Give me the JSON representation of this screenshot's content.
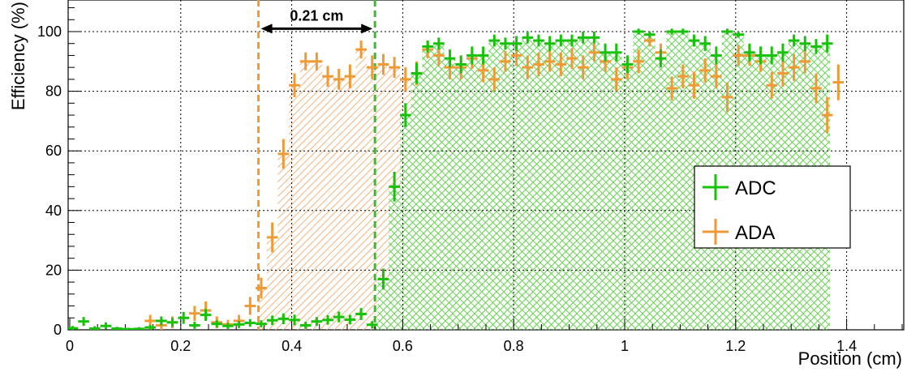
{
  "chart_data": {
    "type": "scatter",
    "xlabel": "Position (cm)",
    "ylabel": "Efficiency (%)",
    "xlim": [
      0,
      1.5
    ],
    "ylim": [
      0,
      110
    ],
    "x_ticks": [
      "0",
      "0.2",
      "0.4",
      "0.6",
      "0.8",
      "1",
      "1.2",
      "1.4"
    ],
    "x_tick_values": [
      0,
      0.2,
      0.4,
      0.6,
      0.8,
      1.0,
      1.2,
      1.4
    ],
    "y_ticks": [
      "0",
      "20",
      "40",
      "60",
      "80",
      "100"
    ],
    "y_tick_values": [
      0,
      20,
      40,
      60,
      80,
      100
    ],
    "grid": true,
    "legend_position": "right",
    "annotation": {
      "text": "0.21 cm",
      "x_start": 0.34,
      "x_end": 0.55,
      "y": 101
    },
    "threshold_lines": [
      {
        "series": "ADA",
        "x": 0.34,
        "color": "#f39a2f"
      },
      {
        "series": "ADC",
        "x": 0.55,
        "color": "#34c02a"
      }
    ],
    "bin_half_width": 0.01,
    "series": [
      {
        "name": "ADC",
        "color": "#17c30a",
        "hatch_color": "#6ad45a",
        "hatch_range": [
          0.55,
          1.37
        ],
        "points": [
          [
            0.005,
            0.5,
            0.8
          ],
          [
            0.025,
            2.8,
            1.5
          ],
          [
            0.045,
            0.4,
            0.8
          ],
          [
            0.065,
            1.3,
            1.2
          ],
          [
            0.085,
            0.4,
            0.6
          ],
          [
            0.105,
            0.2,
            0.5
          ],
          [
            0.125,
            0.3,
            0.6
          ],
          [
            0.145,
            0.8,
            0.8
          ],
          [
            0.165,
            3,
            1.5
          ],
          [
            0.185,
            2.5,
            1.5
          ],
          [
            0.205,
            4,
            2
          ],
          [
            0.225,
            1.5,
            1.2
          ],
          [
            0.245,
            5,
            2
          ],
          [
            0.265,
            2,
            1.2
          ],
          [
            0.285,
            1.3,
            1
          ],
          [
            0.305,
            1.8,
            1.2
          ],
          [
            0.325,
            2.3,
            1.3
          ],
          [
            0.345,
            2,
            1.2
          ],
          [
            0.365,
            3.2,
            1.6
          ],
          [
            0.385,
            3.7,
            1.8
          ],
          [
            0.405,
            3.3,
            1.8
          ],
          [
            0.425,
            1.5,
            1.2
          ],
          [
            0.445,
            2.8,
            1.5
          ],
          [
            0.465,
            3.3,
            1.6
          ],
          [
            0.485,
            4.3,
            1.8
          ],
          [
            0.505,
            3.4,
            1.6
          ],
          [
            0.525,
            5.3,
            2
          ],
          [
            0.545,
            1.7,
            1.2
          ],
          [
            0.565,
            17,
            3.5
          ],
          [
            0.585,
            48,
            5
          ],
          [
            0.605,
            72,
            4
          ],
          [
            0.625,
            86,
            3.5
          ],
          [
            0.645,
            95,
            2
          ],
          [
            0.665,
            96,
            2
          ],
          [
            0.685,
            91,
            3
          ],
          [
            0.705,
            89,
            3
          ],
          [
            0.725,
            92,
            3
          ],
          [
            0.745,
            92,
            3
          ],
          [
            0.765,
            97,
            2
          ],
          [
            0.785,
            96,
            2
          ],
          [
            0.805,
            96,
            2.5
          ],
          [
            0.825,
            98,
            2
          ],
          [
            0.845,
            97,
            2
          ],
          [
            0.865,
            96,
            2.5
          ],
          [
            0.885,
            97,
            2
          ],
          [
            0.905,
            97,
            2
          ],
          [
            0.925,
            98,
            2
          ],
          [
            0.945,
            98,
            2
          ],
          [
            0.965,
            93,
            3
          ],
          [
            0.985,
            93,
            3
          ],
          [
            1.005,
            89,
            3
          ],
          [
            1.025,
            100,
            1
          ],
          [
            1.045,
            99,
            1
          ],
          [
            1.065,
            91,
            3
          ],
          [
            1.085,
            100,
            1
          ],
          [
            1.105,
            100,
            1
          ],
          [
            1.125,
            97,
            2
          ],
          [
            1.145,
            96,
            2.5
          ],
          [
            1.165,
            92,
            3
          ],
          [
            1.185,
            100,
            1
          ],
          [
            1.205,
            99,
            1
          ],
          [
            1.225,
            93,
            3
          ],
          [
            1.245,
            92,
            3
          ],
          [
            1.265,
            92,
            3
          ],
          [
            1.285,
            93,
            3
          ],
          [
            1.305,
            97,
            2
          ],
          [
            1.325,
            96,
            2.5
          ],
          [
            1.345,
            95,
            2.5
          ],
          [
            1.365,
            96,
            3
          ]
        ]
      },
      {
        "name": "ADA",
        "color": "#f09a36",
        "hatch_color": "#f2b37e",
        "hatch_range": [
          0.34,
          1.37
        ],
        "points": [
          [
            0.145,
            3,
            2
          ],
          [
            0.165,
            1.5,
            1.5
          ],
          [
            0.185,
            2.5,
            2
          ],
          [
            0.225,
            5.5,
            2.5
          ],
          [
            0.245,
            6.5,
            3
          ],
          [
            0.265,
            2.5,
            2
          ],
          [
            0.285,
            1.8,
            1.5
          ],
          [
            0.305,
            3,
            2
          ],
          [
            0.325,
            8,
            3
          ],
          [
            0.345,
            14,
            3.5
          ],
          [
            0.365,
            31,
            5
          ],
          [
            0.385,
            59,
            5
          ],
          [
            0.405,
            82,
            4
          ],
          [
            0.425,
            90,
            3
          ],
          [
            0.445,
            90,
            3
          ],
          [
            0.465,
            85,
            3.5
          ],
          [
            0.485,
            84,
            3.5
          ],
          [
            0.505,
            85,
            4
          ],
          [
            0.525,
            94,
            3
          ],
          [
            0.545,
            88,
            4
          ],
          [
            0.565,
            89,
            3.5
          ],
          [
            0.585,
            88,
            3.5
          ],
          [
            0.605,
            84,
            4
          ],
          [
            0.625,
            86,
            4
          ],
          [
            0.645,
            94,
            3
          ],
          [
            0.665,
            92,
            3.5
          ],
          [
            0.685,
            88,
            4
          ],
          [
            0.705,
            88,
            4
          ],
          [
            0.725,
            91,
            3.5
          ],
          [
            0.745,
            87,
            4
          ],
          [
            0.765,
            84,
            4
          ],
          [
            0.785,
            90,
            3.5
          ],
          [
            0.805,
            92,
            3.5
          ],
          [
            0.825,
            88,
            4
          ],
          [
            0.845,
            89,
            4
          ],
          [
            0.865,
            90,
            3.5
          ],
          [
            0.885,
            89,
            4
          ],
          [
            0.905,
            91,
            3.5
          ],
          [
            0.925,
            88,
            4
          ],
          [
            0.945,
            93,
            3
          ],
          [
            0.965,
            90,
            3.5
          ],
          [
            0.985,
            84,
            4
          ],
          [
            1.005,
            88,
            4
          ],
          [
            1.025,
            90,
            4
          ],
          [
            1.045,
            97,
            2
          ],
          [
            1.065,
            93,
            3
          ],
          [
            1.085,
            81,
            4
          ],
          [
            1.105,
            85,
            4
          ],
          [
            1.125,
            82,
            4.5
          ],
          [
            1.145,
            87,
            4
          ],
          [
            1.165,
            85,
            4
          ],
          [
            1.185,
            78,
            5
          ],
          [
            1.205,
            92,
            3.5
          ],
          [
            1.225,
            92,
            3.5
          ],
          [
            1.245,
            90,
            3.5
          ],
          [
            1.265,
            82,
            4.5
          ],
          [
            1.285,
            86,
            4.5
          ],
          [
            1.305,
            88,
            4.5
          ],
          [
            1.325,
            90,
            4
          ],
          [
            1.345,
            81,
            5
          ],
          [
            1.365,
            72,
            6
          ],
          [
            1.385,
            83,
            6
          ]
        ]
      }
    ]
  }
}
